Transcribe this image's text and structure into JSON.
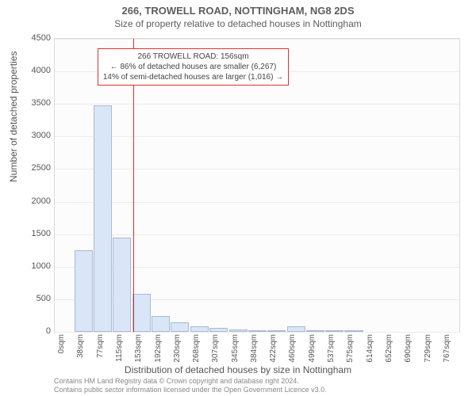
{
  "title_main": "266, TROWELL ROAD, NOTTINGHAM, NG8 2DS",
  "title_sub": "Size of property relative to detached houses in Nottingham",
  "ylabel": "Number of detached properties",
  "xlabel": "Distribution of detached houses by size in Nottingham",
  "chart": {
    "type": "histogram",
    "background_color": "#fcfcfc",
    "grid_color": "#ececec",
    "border_color": "#d9d9d9",
    "bar_fill": "#d9e6f7",
    "bar_border": "#a8b9d6",
    "marker_color": "#e03030",
    "y_max": 4500,
    "y_ticks": [
      0,
      500,
      1000,
      1500,
      2000,
      2500,
      3000,
      3500,
      4000,
      4500
    ],
    "x_ticks": [
      "0sqm",
      "38sqm",
      "77sqm",
      "115sqm",
      "153sqm",
      "192sqm",
      "230sqm",
      "268sqm",
      "307sqm",
      "345sqm",
      "384sqm",
      "422sqm",
      "460sqm",
      "499sqm",
      "537sqm",
      "575sqm",
      "614sqm",
      "652sqm",
      "690sqm",
      "729sqm",
      "767sqm"
    ],
    "x_centers_sqm": [
      19,
      58,
      96,
      134,
      173,
      211,
      249,
      288,
      326,
      365,
      403,
      441,
      480,
      518,
      556,
      595,
      633,
      671,
      710,
      748
    ],
    "values": [
      0,
      1250,
      3480,
      1450,
      580,
      240,
      150,
      90,
      55,
      40,
      30,
      25,
      80,
      15,
      10,
      8,
      6,
      5,
      4,
      3
    ],
    "x_axis_range_sqm": 805,
    "marker_sqm": 156
  },
  "annotation": {
    "line1": "266 TROWELL ROAD: 156sqm",
    "line2": "← 86% of detached houses are smaller (6,267)",
    "line3": "14% of semi-detached houses are larger (1,016) →"
  },
  "footer": {
    "line1": "Contains HM Land Registry data © Crown copyright and database right 2024.",
    "line2": "Contains public sector information licensed under the Open Government Licence v3.0."
  }
}
